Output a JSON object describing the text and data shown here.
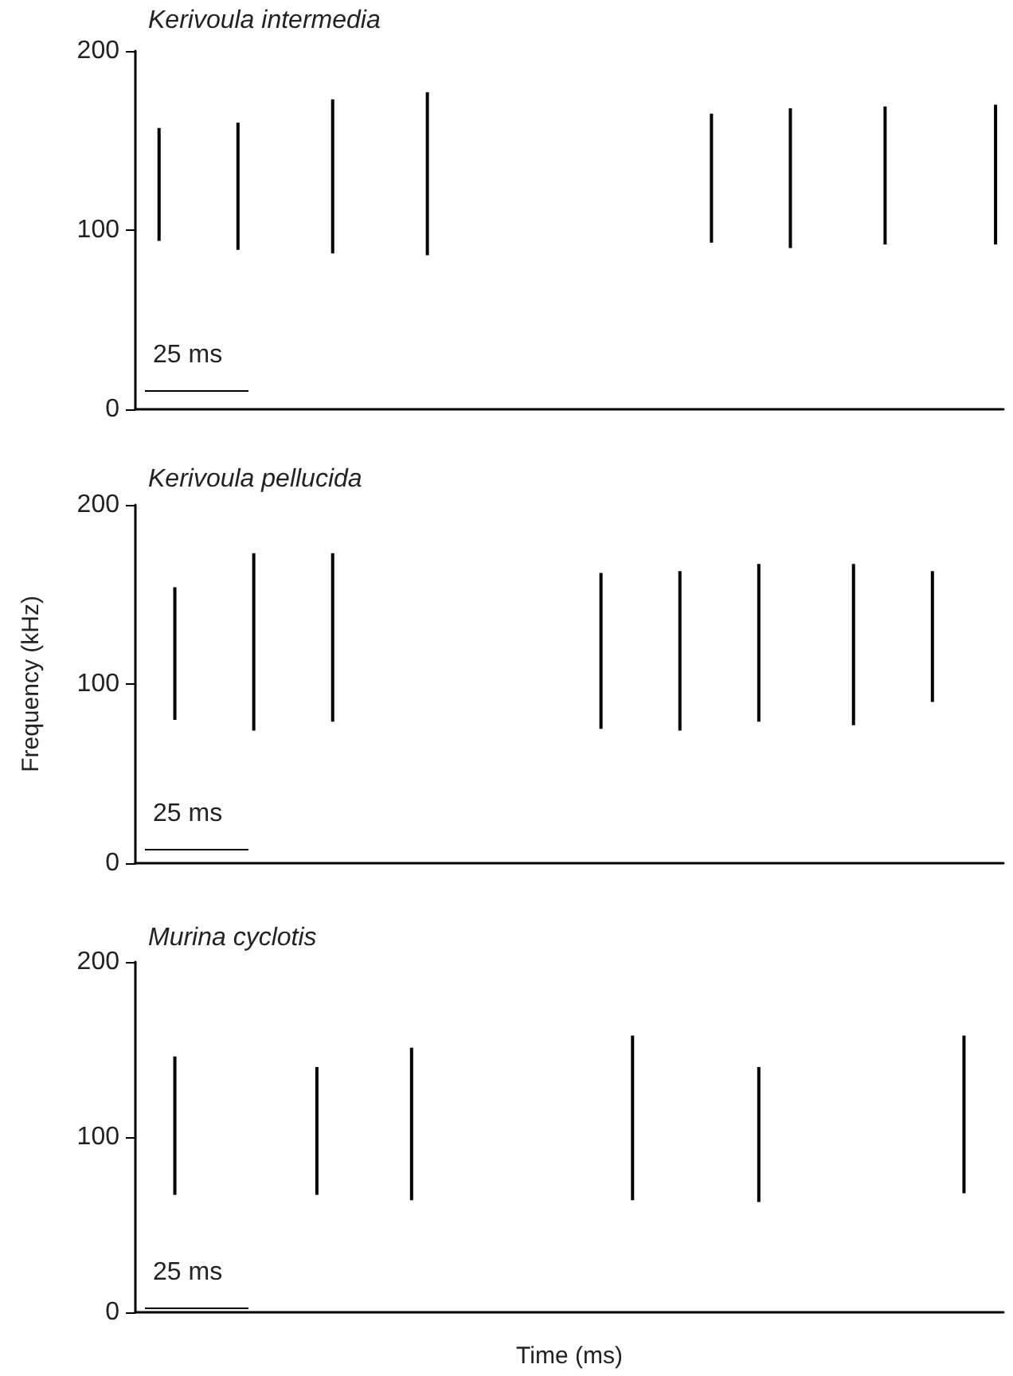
{
  "chart_data": [
    {
      "type": "bar",
      "title": "Kerivoula intermedia",
      "annotations": [
        "25 ms"
      ],
      "categories": [
        null,
        null,
        null,
        null,
        null,
        null,
        null,
        null,
        null,
        null,
        null,
        null,
        null,
        null,
        null,
        null,
        null,
        null,
        null,
        null,
        null,
        null,
        null,
        null,
        null,
        null,
        null,
        null,
        null,
        null,
        null,
        null,
        null,
        null,
        null,
        null,
        null,
        null,
        null,
        null,
        null,
        null,
        null,
        null,
        null,
        null,
        null,
        null,
        null,
        null,
        null,
        null,
        null,
        null,
        null
      ],
      "values": [
        null,
        63,
        null,
        null,
        null,
        null,
        71,
        null,
        null,
        null,
        null,
        null,
        86,
        null,
        null,
        null,
        null,
        null,
        91,
        null,
        null,
        null,
        null,
        null,
        null,
        null,
        null,
        null,
        null,
        null,
        null,
        null,
        null,
        null,
        null,
        null,
        72,
        null,
        null,
        null,
        null,
        78,
        null,
        null,
        null,
        null,
        null,
        77,
        null,
        null,
        null,
        null,
        null,
        null,
        78
      ],
      "base": [
        null,
        94,
        null,
        null,
        null,
        null,
        89,
        null,
        null,
        null,
        null,
        null,
        87,
        null,
        null,
        null,
        null,
        null,
        86,
        null,
        null,
        null,
        null,
        null,
        null,
        null,
        null,
        null,
        null,
        null,
        null,
        null,
        null,
        null,
        null,
        null,
        93,
        null,
        null,
        null,
        null,
        90,
        null,
        null,
        null,
        null,
        null,
        92,
        null,
        null,
        null,
        null,
        null,
        null,
        92
      ],
      "color": "#000000",
      "ylim": [
        0,
        200
      ],
      "yticks": [
        0,
        100,
        200
      ],
      "tick_labels": "y",
      "grid": false
    },
    {
      "type": "bar",
      "title": "Kerivoula pellucida",
      "ylabel": "Frequency (kHz)",
      "annotations": [
        "25 ms"
      ],
      "categories": [
        null,
        null,
        null,
        null,
        null,
        null,
        null,
        null,
        null,
        null,
        null,
        null,
        null,
        null,
        null,
        null,
        null,
        null,
        null,
        null,
        null,
        null,
        null,
        null,
        null,
        null,
        null,
        null,
        null,
        null,
        null,
        null,
        null,
        null,
        null,
        null,
        null,
        null,
        null,
        null,
        null,
        null,
        null,
        null,
        null,
        null,
        null,
        null,
        null,
        null,
        null,
        null,
        null,
        null,
        null
      ],
      "values": [
        null,
        null,
        74,
        null,
        null,
        null,
        null,
        99,
        null,
        null,
        null,
        null,
        94,
        null,
        null,
        null,
        null,
        null,
        null,
        null,
        null,
        null,
        null,
        null,
        null,
        null,
        null,
        null,
        null,
        87,
        null,
        null,
        null,
        null,
        89,
        null,
        null,
        null,
        null,
        88,
        null,
        null,
        null,
        null,
        null,
        90,
        null,
        null,
        null,
        null,
        73,
        null,
        null,
        null,
        null
      ],
      "base": [
        null,
        null,
        80,
        null,
        null,
        null,
        null,
        74,
        null,
        null,
        null,
        null,
        79,
        null,
        null,
        null,
        null,
        null,
        null,
        null,
        null,
        null,
        null,
        null,
        null,
        null,
        null,
        null,
        null,
        75,
        null,
        null,
        null,
        null,
        74,
        null,
        null,
        null,
        null,
        79,
        null,
        null,
        null,
        null,
        null,
        77,
        null,
        null,
        null,
        null,
        90,
        null,
        null,
        null,
        null
      ],
      "color": "#000000",
      "ylim": [
        0,
        200
      ],
      "yticks": [
        0,
        100,
        200
      ],
      "tick_labels": "y",
      "grid": false
    },
    {
      "type": "bar",
      "title": "Murina cyclotis",
      "xlabel": "Time (ms)",
      "annotations": [
        "25 ms"
      ],
      "categories": [
        null,
        null,
        null,
        null,
        null,
        null,
        null,
        null,
        null,
        null,
        null,
        null,
        null,
        null,
        null,
        null,
        null,
        null,
        null,
        null,
        null,
        null,
        null,
        null,
        null,
        null,
        null,
        null,
        null,
        null,
        null,
        null,
        null,
        null,
        null,
        null,
        null,
        null,
        null,
        null,
        null,
        null,
        null,
        null,
        null,
        null,
        null,
        null,
        null,
        null,
        null,
        null,
        null,
        null,
        null
      ],
      "values": [
        null,
        null,
        79,
        null,
        null,
        null,
        null,
        null,
        null,
        null,
        null,
        73,
        null,
        null,
        null,
        null,
        null,
        87,
        null,
        null,
        null,
        null,
        null,
        null,
        null,
        null,
        null,
        null,
        null,
        null,
        null,
        94,
        null,
        null,
        null,
        null,
        null,
        null,
        null,
        77,
        null,
        null,
        null,
        null,
        null,
        null,
        null,
        null,
        null,
        null,
        null,
        null,
        90,
        null,
        null
      ],
      "base": [
        null,
        null,
        67,
        null,
        null,
        null,
        null,
        null,
        null,
        null,
        null,
        67,
        null,
        null,
        null,
        null,
        null,
        64,
        null,
        null,
        null,
        null,
        null,
        null,
        null,
        null,
        null,
        null,
        null,
        null,
        null,
        64,
        null,
        null,
        null,
        null,
        null,
        null,
        null,
        63,
        null,
        null,
        null,
        null,
        null,
        null,
        null,
        null,
        null,
        null,
        null,
        null,
        68,
        null,
        null
      ],
      "color": "#000000",
      "ylim": [
        0,
        200
      ],
      "yticks": [
        0,
        100,
        200
      ],
      "tick_labels": "y",
      "grid": false
    }
  ]
}
